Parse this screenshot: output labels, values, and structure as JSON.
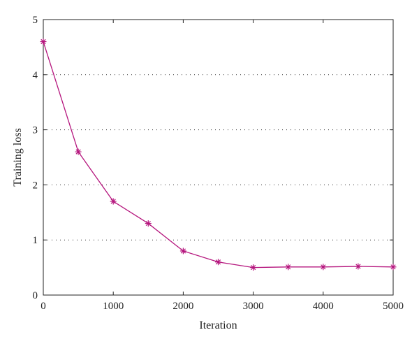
{
  "chart_data": {
    "type": "line",
    "title": "",
    "xlabel": "Iteration",
    "ylabel": "Training loss",
    "xlim": [
      0,
      5000
    ],
    "ylim": [
      0,
      5
    ],
    "x_ticks": [
      0,
      1000,
      2000,
      3000,
      4000,
      5000
    ],
    "y_ticks": [
      0,
      1,
      2,
      3,
      4,
      5
    ],
    "grid": "horizontal dotted",
    "legend": "none",
    "series": [
      {
        "color": "#b5157d",
        "marker": "asterisk",
        "x": [
          0,
          500,
          1000,
          1500,
          2000,
          2500,
          3000,
          3500,
          4000,
          4500,
          5000
        ],
        "y": [
          4.6,
          2.6,
          1.7,
          1.3,
          0.8,
          0.6,
          0.5,
          0.51,
          0.51,
          0.52,
          0.51
        ]
      }
    ]
  }
}
